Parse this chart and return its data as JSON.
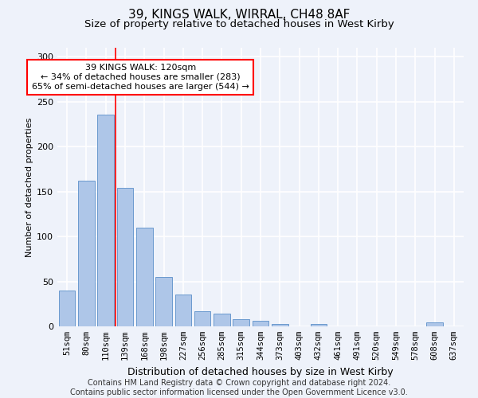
{
  "title1": "39, KINGS WALK, WIRRAL, CH48 8AF",
  "title2": "Size of property relative to detached houses in West Kirby",
  "xlabel": "Distribution of detached houses by size in West Kirby",
  "ylabel": "Number of detached properties",
  "categories": [
    "51sqm",
    "80sqm",
    "110sqm",
    "139sqm",
    "168sqm",
    "198sqm",
    "227sqm",
    "256sqm",
    "285sqm",
    "315sqm",
    "344sqm",
    "373sqm",
    "403sqm",
    "432sqm",
    "461sqm",
    "491sqm",
    "520sqm",
    "549sqm",
    "578sqm",
    "608sqm",
    "637sqm"
  ],
  "values": [
    40,
    162,
    236,
    154,
    110,
    55,
    35,
    17,
    14,
    8,
    6,
    3,
    0,
    3,
    0,
    0,
    0,
    0,
    0,
    4,
    0
  ],
  "bar_color": "#aec6e8",
  "bar_edge_color": "#5b8fc9",
  "vline_x": 2.5,
  "vline_color": "red",
  "annotation_text": "39 KINGS WALK: 120sqm\n← 34% of detached houses are smaller (283)\n65% of semi-detached houses are larger (544) →",
  "annotation_box_color": "white",
  "annotation_box_edge": "red",
  "ylim": [
    0,
    310
  ],
  "yticks": [
    0,
    50,
    100,
    150,
    200,
    250,
    300
  ],
  "footer": "Contains HM Land Registry data © Crown copyright and database right 2024.\nContains public sector information licensed under the Open Government Licence v3.0.",
  "bg_color": "#eef2fa",
  "plot_bg_color": "#eef2fa",
  "grid_color": "#ffffff",
  "title1_fontsize": 11,
  "title2_fontsize": 9.5,
  "xlabel_fontsize": 9,
  "ylabel_fontsize": 8,
  "footer_fontsize": 7,
  "annotation_fontsize": 8,
  "tick_fontsize": 7.5
}
